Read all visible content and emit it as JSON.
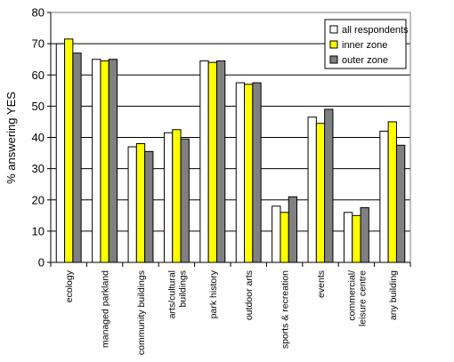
{
  "chart_data": {
    "type": "bar",
    "title": "",
    "xlabel": "",
    "ylabel": "% answering YES",
    "ylim": [
      0,
      80
    ],
    "yticks": [
      0,
      10,
      20,
      30,
      40,
      50,
      60,
      70,
      80
    ],
    "grid": true,
    "legend_position": "top-right",
    "categories": [
      "ecology",
      "managed parkland",
      "community buildings",
      "arts/cultural\nbuildings",
      "park history",
      "outdoor arts",
      "sports & recreation",
      "events",
      "commercial/\nleisure centre",
      "any building"
    ],
    "series": [
      {
        "name": "all respondents",
        "color": "#ffffff",
        "values": [
          70,
          65,
          37,
          41.5,
          64.5,
          57.5,
          18,
          46.5,
          16,
          42
        ]
      },
      {
        "name": "inner zone",
        "color": "#ffff00",
        "values": [
          71.5,
          64.5,
          38,
          42.5,
          64,
          57,
          16,
          44.5,
          15,
          45
        ]
      },
      {
        "name": "outer zone",
        "color": "#808080",
        "values": [
          67,
          65,
          35.5,
          39.5,
          64.5,
          57.5,
          21,
          49,
          17.5,
          37.5
        ]
      }
    ]
  }
}
